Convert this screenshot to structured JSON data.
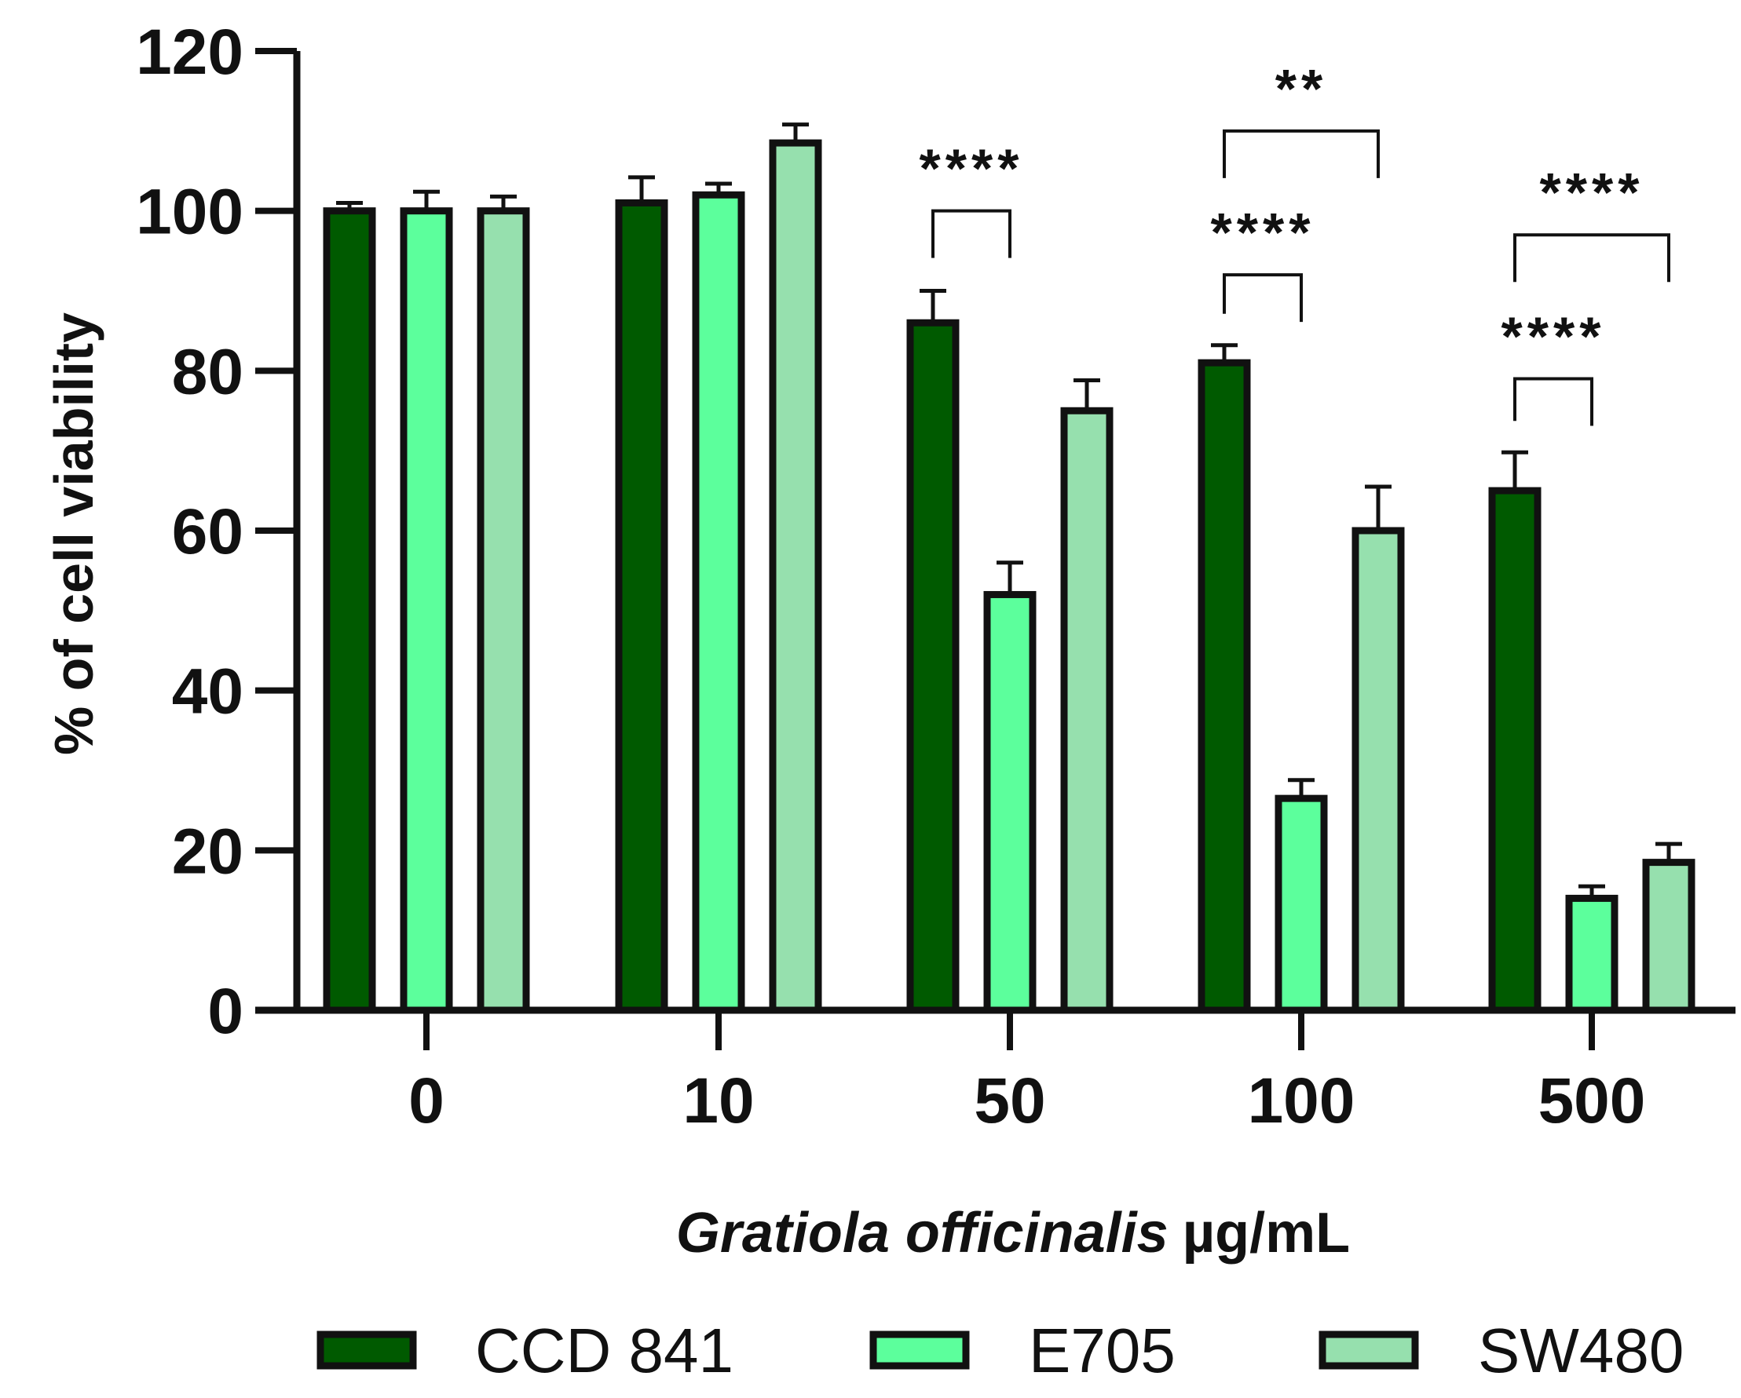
{
  "chart_data": {
    "type": "bar",
    "title": "",
    "xlabel_italic": "Gratiola officinalis",
    "xlabel_unit": "µg/mL",
    "ylabel": "% of cell viability",
    "ylim": [
      0,
      120
    ],
    "yticks": [
      0,
      20,
      40,
      60,
      80,
      100,
      120
    ],
    "categories": [
      "0",
      "10",
      "50",
      "100",
      "500"
    ],
    "series": [
      {
        "name": "CCD 841",
        "color": "#005a00",
        "values": [
          100,
          101,
          86,
          81,
          65
        ],
        "errors": [
          1,
          3.2,
          4,
          2.2,
          4.8
        ]
      },
      {
        "name": "E705",
        "color": "#5cff9c",
        "values": [
          100,
          102,
          52,
          26.5,
          14
        ],
        "errors": [
          2.4,
          1.4,
          4,
          2.3,
          1.5
        ]
      },
      {
        "name": "SW480",
        "color": "#96e0ae",
        "values": [
          100,
          108.5,
          75,
          60,
          18.5
        ],
        "errors": [
          1.8,
          2.3,
          3.8,
          5.5,
          2.3
        ]
      }
    ],
    "significance": [
      {
        "category": 2,
        "from_series": 0,
        "to_series": 1,
        "label": "****",
        "level": 100
      },
      {
        "category": 3,
        "from_series": 0,
        "to_series": 1,
        "label": "****",
        "level": 92
      },
      {
        "category": 3,
        "from_series": 0,
        "to_series": 2,
        "label": "**",
        "level": 110
      },
      {
        "category": 4,
        "from_series": 0,
        "to_series": 1,
        "label": "****",
        "level": 79
      },
      {
        "category": 4,
        "from_series": 0,
        "to_series": 2,
        "label": "****",
        "level": 97
      }
    ],
    "legend_position": "bottom"
  }
}
